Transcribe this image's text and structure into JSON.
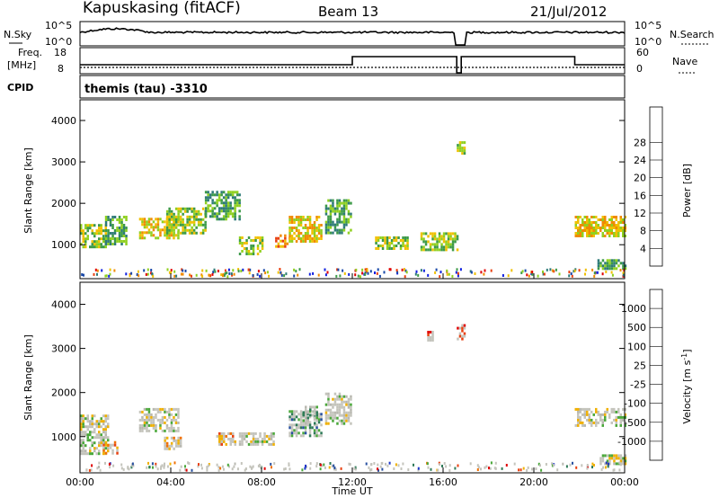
{
  "header": {
    "station": "Kapuskasing (fitACF)",
    "beam": "Beam 13",
    "date": "21/Jul/2012"
  },
  "status_panels": {
    "nsky_label": "N.Sky",
    "nsearch_label": "N.Search",
    "freq_label_line1": "Freq.",
    "freq_label_line2": "[MHz]",
    "nave_label": "Nave",
    "cpid_label": "CPID",
    "cpid_text": "themis (tau) -3310",
    "noise_ticks": [
      "10^5",
      "10^0"
    ],
    "noise_ticks_right": [
      "10^5",
      "10^0"
    ],
    "freq_ticks": [
      "18",
      "8"
    ],
    "nave_ticks": [
      "60",
      "0"
    ]
  },
  "chart_data": [
    {
      "type": "heatmap",
      "name": "power",
      "ylabel": "Slant Range [km]",
      "xlabel": "",
      "ylim": [
        180,
        4500
      ],
      "yticks": [
        1000,
        2000,
        3000,
        4000
      ],
      "x_ticks": [
        "00:00",
        "04:00",
        "08:00",
        "12:00",
        "16:00",
        "20:00",
        "00:00"
      ],
      "colorbar": {
        "label": "Power [dB]",
        "ticks": [
          "4",
          "8",
          "12",
          "16",
          "20",
          "24",
          "28"
        ],
        "colors": [
          "#1020e0",
          "#1848a8",
          "#2e7a78",
          "#3c9a48",
          "#90d020",
          "#f0c000",
          "#f08a00",
          "#e84010",
          "#e00000"
        ]
      },
      "echo_regions": [
        {
          "t": [
            0.0,
            1.1
          ],
          "r": [
            950,
            1500
          ],
          "level": 4
        },
        {
          "t": [
            1.1,
            2.0
          ],
          "r": [
            1000,
            1700
          ],
          "level": 3
        },
        {
          "t": [
            2.6,
            4.3
          ],
          "r": [
            1150,
            1650
          ],
          "level": 5
        },
        {
          "t": [
            3.8,
            5.5
          ],
          "r": [
            1300,
            1900
          ],
          "level": 4
        },
        {
          "t": [
            5.5,
            7.0
          ],
          "r": [
            1600,
            2300
          ],
          "level": 3
        },
        {
          "t": [
            7.0,
            8.0
          ],
          "r": [
            800,
            1200
          ],
          "level": 4
        },
        {
          "t": [
            8.6,
            9.2
          ],
          "r": [
            950,
            1250
          ],
          "level": 6
        },
        {
          "t": [
            9.2,
            10.6
          ],
          "r": [
            1100,
            1700
          ],
          "level": 5
        },
        {
          "t": [
            10.8,
            11.9
          ],
          "r": [
            1300,
            2100
          ],
          "level": 3
        },
        {
          "t": [
            13.0,
            14.4
          ],
          "r": [
            900,
            1200
          ],
          "level": 4
        },
        {
          "t": [
            15.0,
            16.6
          ],
          "r": [
            900,
            1300
          ],
          "level": 4
        },
        {
          "t": [
            16.6,
            16.9
          ],
          "r": [
            3200,
            3500
          ],
          "level": 4
        },
        {
          "t": [
            21.8,
            24.0
          ],
          "r": [
            1200,
            1700
          ],
          "level": 5
        },
        {
          "t": [
            22.8,
            24.0
          ],
          "r": [
            400,
            650
          ],
          "level": 3
        }
      ]
    },
    {
      "type": "heatmap",
      "name": "velocity",
      "ylabel": "Slant Range [km]",
      "xlabel": "Time UT",
      "ylim": [
        180,
        4500
      ],
      "yticks": [
        1000,
        2000,
        3000,
        4000
      ],
      "x_ticks": [
        "00:00",
        "04:00",
        "08:00",
        "12:00",
        "16:00",
        "20:00",
        "00:00"
      ],
      "colorbar": {
        "label": "Velocity [m s",
        "label_sup": "-1",
        "label_end": "]",
        "ticks": [
          "1000",
          "500",
          "100",
          "25",
          "-25",
          "-100",
          "-500",
          "-1000"
        ],
        "colors": [
          "#1a36c8",
          "#2850a0",
          "#2e7a58",
          "#4aa83a",
          "#b8b8b0",
          "#f0b000",
          "#f07000",
          "#e84010",
          "#e00000"
        ]
      },
      "ground_scatter_color": "#c4c4bc",
      "echo_regions": [
        {
          "t": [
            0.0,
            1.2
          ],
          "r": [
            600,
            1500
          ],
          "level": 4
        },
        {
          "t": [
            1.0,
            1.6
          ],
          "r": [
            600,
            900
          ],
          "level": 6
        },
        {
          "t": [
            2.6,
            4.3
          ],
          "r": [
            1150,
            1650
          ],
          "level": 4
        },
        {
          "t": [
            3.7,
            4.4
          ],
          "r": [
            700,
            1000
          ],
          "level": 5
        },
        {
          "t": [
            6.0,
            6.8
          ],
          "r": [
            800,
            1100
          ],
          "level": 6
        },
        {
          "t": [
            7.0,
            8.5
          ],
          "r": [
            800,
            1100
          ],
          "level": 4
        },
        {
          "t": [
            9.2,
            10.6
          ],
          "r": [
            1000,
            1600
          ],
          "level": 2
        },
        {
          "t": [
            9.8,
            10.4
          ],
          "r": [
            1300,
            1700
          ],
          "level": 3
        },
        {
          "t": [
            10.8,
            11.9
          ],
          "r": [
            1300,
            2000
          ],
          "level": 4
        },
        {
          "t": [
            16.6,
            16.9
          ],
          "r": [
            3200,
            3550
          ],
          "level": 8
        },
        {
          "t": [
            15.3,
            15.5
          ],
          "r": [
            3200,
            3400
          ],
          "level": 7
        },
        {
          "t": [
            21.8,
            24.0
          ],
          "r": [
            1250,
            1650
          ],
          "level": 4
        },
        {
          "t": [
            22.9,
            24.0
          ],
          "r": [
            400,
            600
          ],
          "level": 4
        }
      ]
    }
  ]
}
